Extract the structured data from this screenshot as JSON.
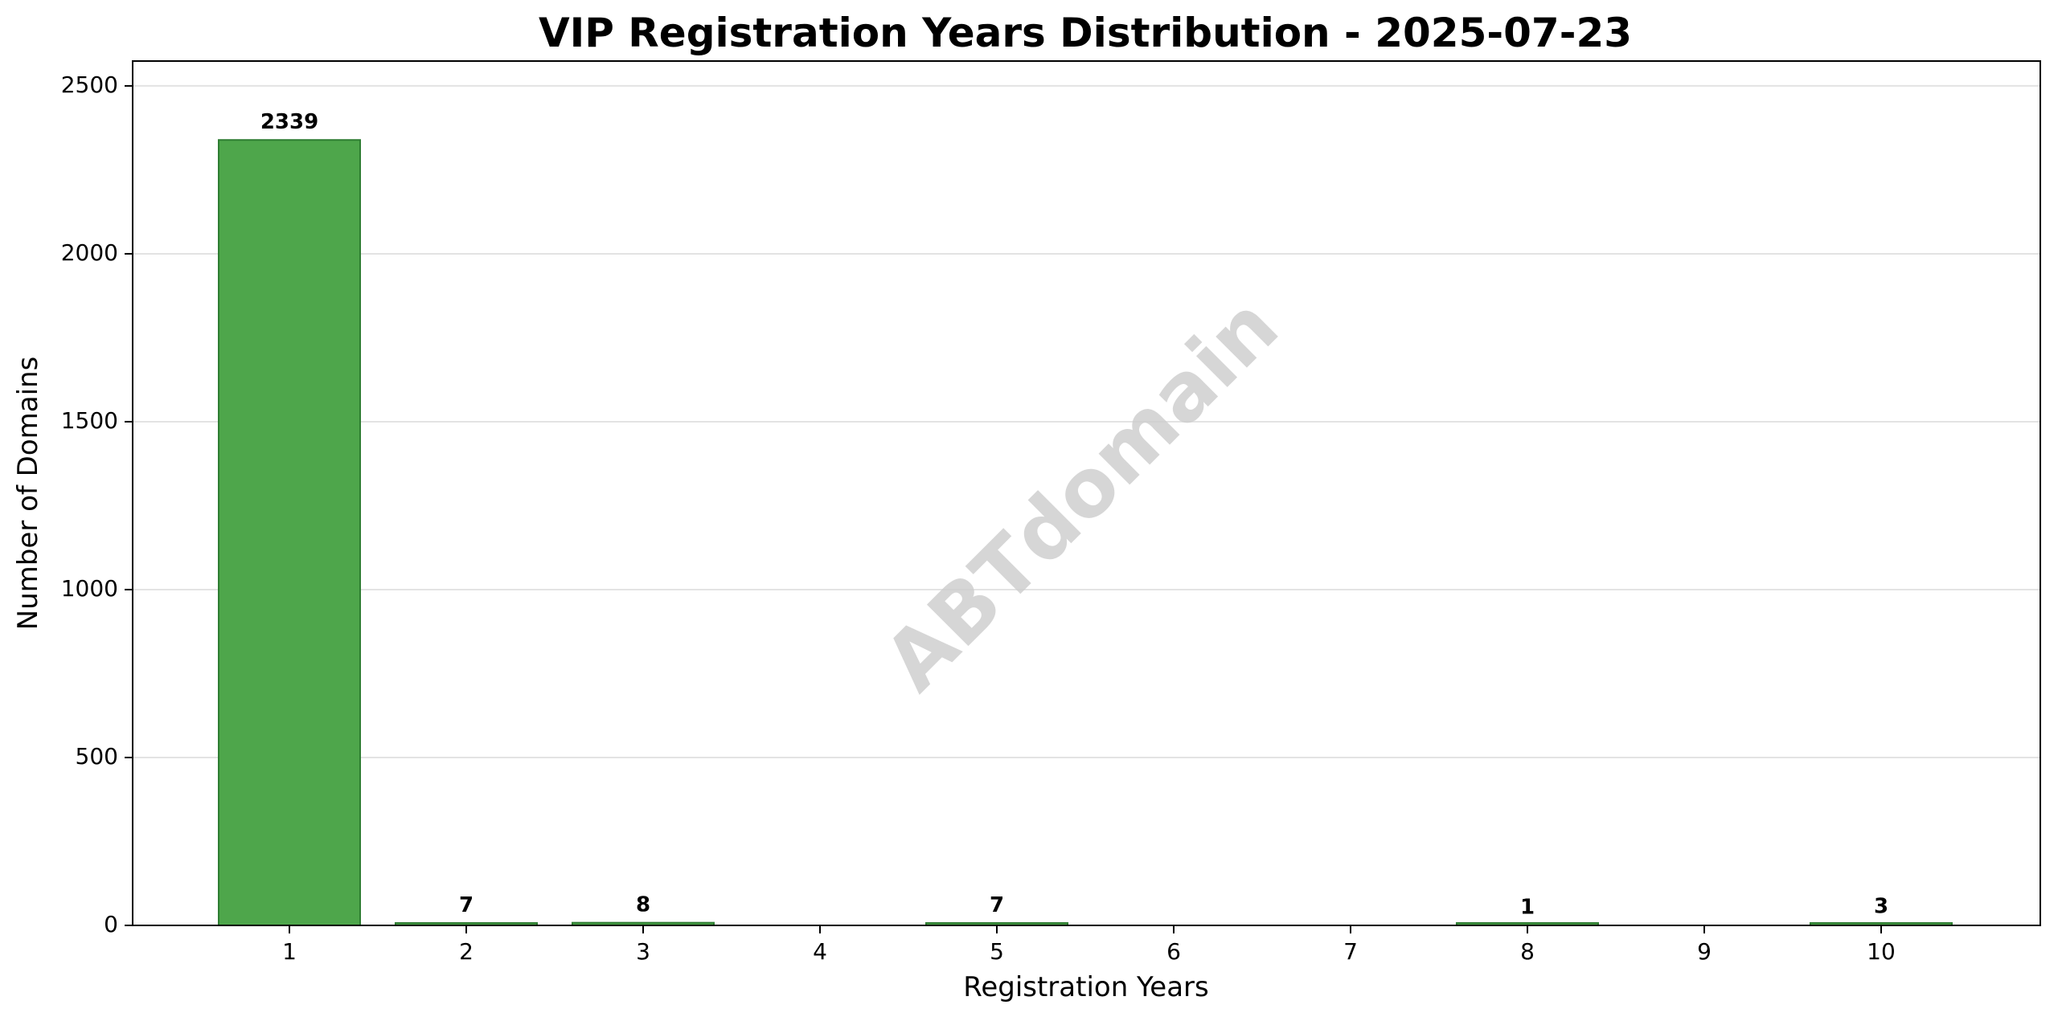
{
  "chart_data": {
    "type": "bar",
    "title": "VIP Registration Years Distribution - 2025-07-23",
    "xlabel": "Registration Years",
    "ylabel": "Number of Domains",
    "categories": [
      "1",
      "2",
      "3",
      "4",
      "5",
      "6",
      "7",
      "8",
      "9",
      "10"
    ],
    "values": [
      2339,
      7,
      8,
      0,
      7,
      0,
      0,
      1,
      0,
      3
    ],
    "data_labels": [
      "2339",
      "7",
      "8",
      "",
      "7",
      "",
      "",
      "1",
      "",
      "3"
    ],
    "ylim": [
      0,
      2574
    ],
    "yticks": [
      0,
      500,
      1000,
      1500,
      2000,
      2500
    ],
    "grid": "horizontal",
    "bar_color": "#4ea64b",
    "bar_edge_color": "#2e7d32",
    "watermark": "ABTdomain"
  }
}
